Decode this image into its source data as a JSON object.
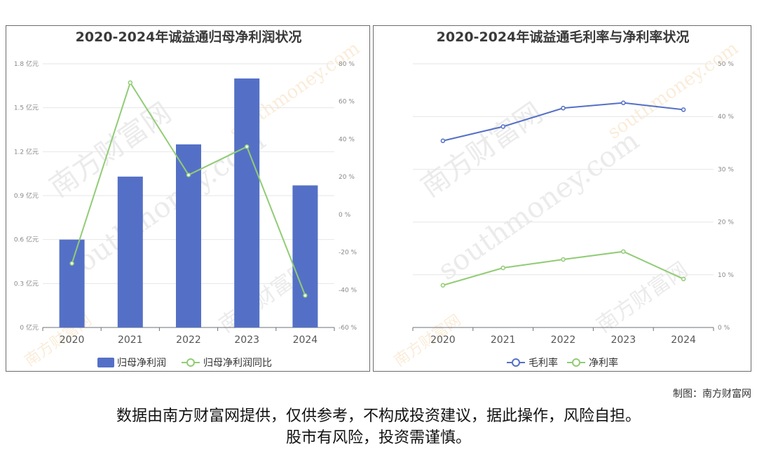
{
  "chart_data": [
    {
      "type": "bar+line",
      "title": "2020-2024年诚益通归母净利润状况",
      "categories": [
        "2020",
        "2021",
        "2022",
        "2023",
        "2024"
      ],
      "series": [
        {
          "name": "归母净利润",
          "kind": "bar",
          "axis": "left",
          "color": "#5470c6",
          "values": [
            0.6,
            1.03,
            1.25,
            1.7,
            0.97
          ]
        },
        {
          "name": "归母净利润同比",
          "kind": "line",
          "axis": "right",
          "color": "#91cc75",
          "values": [
            -26,
            70,
            21,
            36,
            -43
          ]
        }
      ],
      "y_left": {
        "ylim": [
          0,
          1.8
        ],
        "ticks": [
          0,
          0.3,
          0.6,
          0.9,
          1.2,
          1.5,
          1.8
        ],
        "tick_labels": [
          "0 亿元",
          "0.3 亿元",
          "0.6 亿元",
          "0.9 亿元",
          "1.2 亿元",
          "1.5 亿元",
          "1.8 亿元"
        ]
      },
      "y_right": {
        "ylim": [
          -60,
          80
        ],
        "ticks": [
          -60,
          -40,
          -20,
          0,
          20,
          40,
          60,
          80
        ],
        "tick_labels": [
          "-60 %",
          "-40 %",
          "-20 %",
          "0 %",
          "20 %",
          "40 %",
          "60 %",
          "80 %"
        ]
      },
      "grid": true,
      "legend": "bottom-center"
    },
    {
      "type": "line",
      "title": "2020-2024年诚益通毛利率与净利率状况",
      "categories": [
        "2020",
        "2021",
        "2022",
        "2023",
        "2024"
      ],
      "series": [
        {
          "name": "毛利率",
          "color": "#5470c6",
          "values": [
            35.4,
            38.1,
            41.6,
            42.6,
            41.3
          ]
        },
        {
          "name": "净利率",
          "color": "#91cc75",
          "values": [
            8,
            11.3,
            12.9,
            14.4,
            9.2
          ]
        }
      ],
      "y_right": {
        "ylim": [
          0,
          50
        ],
        "ticks": [
          0,
          10,
          20,
          30,
          40,
          50
        ],
        "tick_labels": [
          "0 %",
          "10 %",
          "20 %",
          "30 %",
          "40 %",
          "50 %"
        ]
      },
      "grid": true,
      "legend": "bottom-center"
    }
  ],
  "watermark": {
    "cn": "南方财富网",
    "en": "southmoney.com"
  },
  "footer": {
    "credit": "制图：南方财富网",
    "line1": "数据由南方财富网提供，仅供参考，不构成投资建议，据此操作，风险自担。",
    "line2": "股市有风险，投资需谨慎。"
  }
}
